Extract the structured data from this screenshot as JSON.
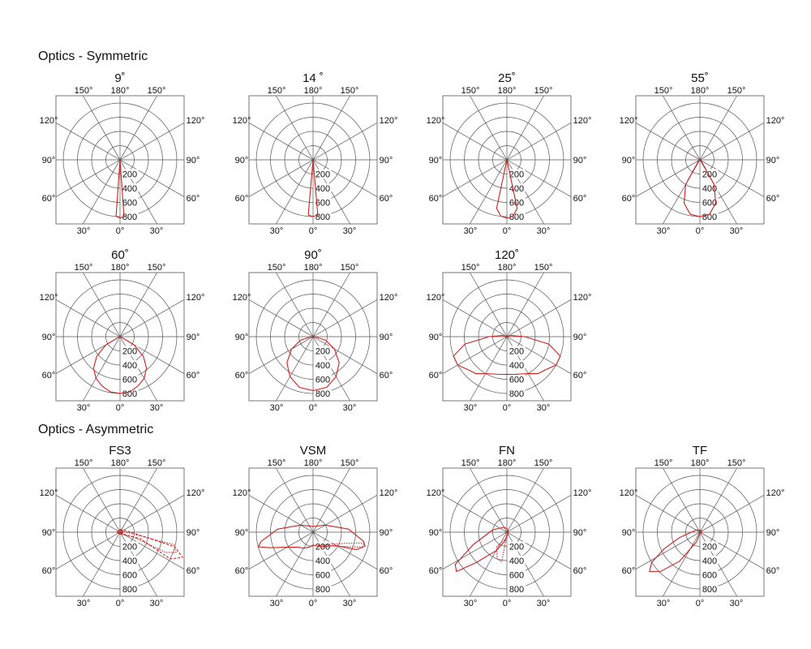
{
  "sections": {
    "symmetric": "Optics - Symmetric",
    "asymmetric": "Optics - Asymmetric"
  },
  "axis_labels": {
    "angle_top": [
      "150°",
      "180°",
      "150°"
    ],
    "angle_left": [
      "120°",
      "90°",
      "60°"
    ],
    "angle_right": [
      "120°",
      "90°",
      "60°"
    ],
    "angle_bottom": [
      "30°",
      "0°",
      "30°"
    ],
    "radial": [
      "200",
      "400",
      "600",
      "800"
    ]
  },
  "colors": {
    "curve": "#d11f1f",
    "grid": "#555555"
  },
  "chart_data": [
    {
      "type": "polar",
      "title": "9˚",
      "rmax": 800,
      "series": [
        {
          "style": "solid",
          "points": [
            [
              -180,
              0
            ],
            [
              -4,
              800
            ],
            [
              0,
              820
            ],
            [
              4,
              800
            ],
            [
              180,
              0
            ]
          ]
        }
      ]
    },
    {
      "type": "polar",
      "title": "14 ˚",
      "rmax": 800,
      "series": [
        {
          "style": "solid",
          "points": [
            [
              -180,
              0
            ],
            [
              -5,
              780
            ],
            [
              0,
              800
            ],
            [
              5,
              780
            ],
            [
              180,
              0
            ]
          ]
        }
      ]
    },
    {
      "type": "polar",
      "title": "25˚",
      "rmax": 800,
      "series": [
        {
          "style": "solid",
          "points": [
            [
              -180,
              0
            ],
            [
              -12,
              700
            ],
            [
              -6,
              800
            ],
            [
              0,
              820
            ],
            [
              6,
              800
            ],
            [
              12,
              700
            ],
            [
              180,
              0
            ]
          ]
        }
      ]
    },
    {
      "type": "polar",
      "title": "55˚",
      "rmax": 800,
      "series": [
        {
          "style": "solid",
          "points": [
            [
              -180,
              0
            ],
            [
              -45,
              30
            ],
            [
              -30,
              400
            ],
            [
              -20,
              650
            ],
            [
              -10,
              780
            ],
            [
              0,
              800
            ],
            [
              10,
              780
            ],
            [
              20,
              650
            ],
            [
              30,
              400
            ],
            [
              45,
              30
            ],
            [
              180,
              0
            ]
          ]
        }
      ]
    },
    {
      "type": "polar",
      "title": "60˚",
      "rmax": 800,
      "series": [
        {
          "style": "solid",
          "points": [
            [
              -180,
              0
            ],
            [
              -75,
              10
            ],
            [
              -60,
              230
            ],
            [
              -50,
              430
            ],
            [
              -40,
              580
            ],
            [
              -30,
              680
            ],
            [
              -20,
              740
            ],
            [
              -10,
              790
            ],
            [
              0,
              800
            ],
            [
              10,
              790
            ],
            [
              20,
              740
            ],
            [
              30,
              680
            ],
            [
              40,
              580
            ],
            [
              50,
              430
            ],
            [
              60,
              230
            ],
            [
              75,
              10
            ],
            [
              180,
              0
            ]
          ]
        }
      ]
    },
    {
      "type": "polar",
      "title": "90˚",
      "rmax": 800,
      "series": [
        {
          "style": "solid",
          "points": [
            [
              -180,
              0
            ],
            [
              -90,
              20
            ],
            [
              -75,
              180
            ],
            [
              -60,
              350
            ],
            [
              -45,
              520
            ],
            [
              -30,
              650
            ],
            [
              -15,
              740
            ],
            [
              0,
              760
            ],
            [
              15,
              740
            ],
            [
              30,
              650
            ],
            [
              45,
              520
            ],
            [
              60,
              350
            ],
            [
              75,
              180
            ],
            [
              90,
              20
            ],
            [
              180,
              0
            ]
          ]
        }
      ]
    },
    {
      "type": "polar",
      "title": "120˚",
      "rmax": 800,
      "series": [
        {
          "style": "solid",
          "points": [
            [
              -180,
              0
            ],
            [
              -105,
              60
            ],
            [
              -90,
              250
            ],
            [
              -80,
              600
            ],
            [
              -70,
              800
            ],
            [
              -60,
              800
            ],
            [
              -50,
              720
            ],
            [
              -40,
              680
            ],
            [
              -30,
              600
            ],
            [
              -20,
              560
            ],
            [
              -10,
              540
            ],
            [
              0,
              530
            ],
            [
              10,
              540
            ],
            [
              20,
              560
            ],
            [
              30,
              600
            ],
            [
              40,
              680
            ],
            [
              50,
              720
            ],
            [
              60,
              800
            ],
            [
              70,
              800
            ],
            [
              80,
              600
            ],
            [
              90,
              250
            ],
            [
              105,
              60
            ],
            [
              180,
              0
            ]
          ]
        }
      ]
    },
    {
      "type": "polar",
      "title": "FS3",
      "rmax": 800,
      "series": [
        {
          "style": "dashed",
          "points": [
            [
              180,
              40
            ],
            [
              120,
              60
            ],
            [
              95,
              120
            ],
            [
              75,
              800
            ],
            [
              68,
              950
            ],
            [
              62,
              800
            ],
            [
              72,
              300
            ],
            [
              60,
              60
            ],
            [
              0,
              0
            ]
          ]
        },
        {
          "style": "dotted",
          "points": [
            [
              180,
              40
            ],
            [
              100,
              50
            ],
            [
              77,
              780
            ],
            [
              70,
              840
            ],
            [
              66,
              700
            ],
            [
              70,
              200
            ],
            [
              40,
              40
            ],
            [
              0,
              0
            ]
          ]
        },
        {
          "style": "solid",
          "points": [
            [
              -180,
              40
            ],
            [
              -90,
              45
            ],
            [
              0,
              30
            ],
            [
              90,
              45
            ],
            [
              180,
              40
            ]
          ]
        }
      ]
    },
    {
      "type": "polar",
      "title": "VSM",
      "rmax": 800,
      "series": [
        {
          "style": "solid",
          "points": [
            [
              0,
              180
            ],
            [
              -15,
              220
            ],
            [
              -30,
              260
            ],
            [
              -45,
              300
            ],
            [
              -60,
              420
            ],
            [
              -70,
              640
            ],
            [
              -75,
              800
            ],
            [
              -80,
              740
            ],
            [
              -95,
              500
            ],
            [
              -120,
              200
            ],
            [
              -150,
              100
            ],
            [
              180,
              80
            ],
            [
              150,
              100
            ],
            [
              120,
              200
            ],
            [
              95,
              500
            ],
            [
              80,
              720
            ],
            [
              75,
              760
            ],
            [
              68,
              660
            ],
            [
              60,
              380
            ],
            [
              45,
              280
            ],
            [
              30,
              240
            ],
            [
              15,
              200
            ],
            [
              0,
              180
            ]
          ]
        },
        {
          "style": "dotted",
          "points": [
            [
              20,
              200
            ],
            [
              50,
              300
            ],
            [
              65,
              480
            ],
            [
              73,
              720
            ],
            [
              78,
              740
            ],
            [
              72,
              500
            ],
            [
              55,
              300
            ],
            [
              20,
              200
            ]
          ]
        }
      ]
    },
    {
      "type": "polar",
      "title": "FN",
      "rmax": 800,
      "series": [
        {
          "style": "solid",
          "points": [
            [
              0,
              60
            ],
            [
              -15,
              140
            ],
            [
              -30,
              300
            ],
            [
              -45,
              600
            ],
            [
              -52,
              900
            ],
            [
              -58,
              860
            ],
            [
              -70,
              500
            ],
            [
              -100,
              200
            ],
            [
              -150,
              80
            ],
            [
              180,
              50
            ],
            [
              150,
              30
            ],
            [
              90,
              20
            ],
            [
              30,
              30
            ],
            [
              0,
              60
            ]
          ]
        },
        {
          "style": "dotted",
          "points": [
            [
              0,
              40
            ],
            [
              -10,
              420
            ],
            [
              -20,
              400
            ],
            [
              -35,
              250
            ],
            [
              -10,
              90
            ],
            [
              0,
              40
            ]
          ]
        }
      ]
    },
    {
      "type": "polar",
      "title": "TF",
      "rmax": 800,
      "series": [
        {
          "style": "solid",
          "points": [
            [
              0,
              20
            ],
            [
              -20,
              150
            ],
            [
              -35,
              500
            ],
            [
              -45,
              780
            ],
            [
              -52,
              900
            ],
            [
              -58,
              800
            ],
            [
              -65,
              560
            ],
            [
              -75,
              300
            ],
            [
              -90,
              120
            ],
            [
              -120,
              60
            ],
            [
              180,
              30
            ],
            [
              120,
              30
            ],
            [
              60,
              20
            ],
            [
              0,
              20
            ]
          ]
        }
      ]
    }
  ]
}
